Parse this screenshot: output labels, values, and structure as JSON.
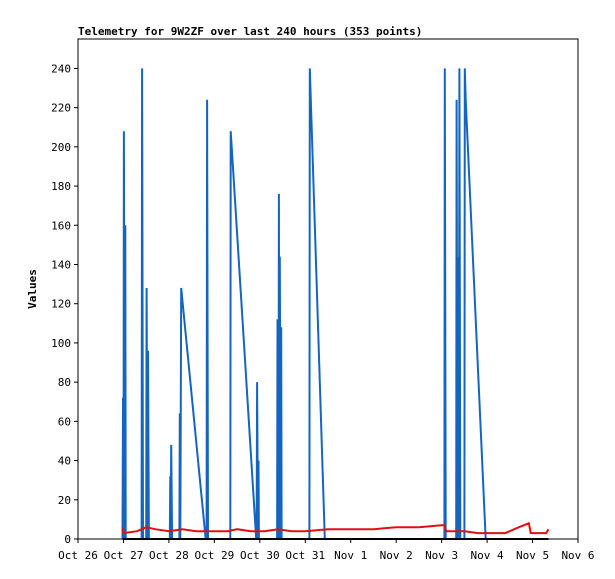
{
  "chart_data": {
    "type": "line",
    "title": "Telemetry for 9W2ZF over last 240 hours (353 points)",
    "xlabel": "",
    "ylabel": "Values",
    "ylim": [
      0,
      255
    ],
    "xlim": [
      0,
      11
    ],
    "yticks": [
      0,
      20,
      40,
      60,
      80,
      100,
      120,
      140,
      160,
      180,
      200,
      220,
      240
    ],
    "x_tick_labels": [
      "Oct 26",
      "Oct 27",
      "Oct 28",
      "Oct 29",
      "Oct 30",
      "Oct 31",
      "Nov 1",
      "Nov 2",
      "Nov 3",
      "Nov 4",
      "Nov 5",
      "Nov 6"
    ],
    "x_unit": "days since Oct 26",
    "grid": false,
    "colors": {
      "series_blue": "#1565c0",
      "series_red": "#e01010",
      "series_black": "#000000"
    },
    "series": [
      {
        "key": "blue",
        "points": [
          [
            0.98,
            0
          ],
          [
            0.99,
            72
          ],
          [
            1.0,
            0
          ],
          [
            1.01,
            208
          ],
          [
            1.03,
            0
          ],
          [
            1.04,
            160
          ],
          [
            1.05,
            0
          ],
          [
            1.4,
            0
          ],
          [
            1.41,
            240
          ],
          [
            1.43,
            0
          ],
          [
            1.5,
            0
          ],
          [
            1.51,
            128
          ],
          [
            1.53,
            0
          ],
          [
            1.54,
            96
          ],
          [
            1.56,
            0
          ],
          [
            2.02,
            0
          ],
          [
            2.03,
            32
          ],
          [
            2.04,
            0
          ],
          [
            2.05,
            48
          ],
          [
            2.07,
            0
          ],
          [
            2.23,
            0
          ],
          [
            2.24,
            64
          ],
          [
            2.25,
            0
          ],
          [
            2.27,
            128
          ],
          [
            2.81,
            0
          ],
          [
            2.83,
            0
          ],
          [
            2.84,
            224
          ],
          [
            2.86,
            0
          ],
          [
            3.35,
            0
          ],
          [
            3.36,
            208
          ],
          [
            3.92,
            0
          ],
          [
            3.93,
            0
          ],
          [
            3.94,
            80
          ],
          [
            3.96,
            0
          ],
          [
            3.97,
            40
          ],
          [
            3.98,
            0
          ],
          [
            4.38,
            0
          ],
          [
            4.39,
            112
          ],
          [
            4.41,
            0
          ],
          [
            4.42,
            176
          ],
          [
            4.43,
            0
          ],
          [
            4.44,
            144
          ],
          [
            4.46,
            0
          ],
          [
            4.47,
            108
          ],
          [
            4.48,
            0
          ],
          [
            5.09,
            0
          ],
          [
            5.1,
            240
          ],
          [
            5.43,
            0
          ],
          [
            8.06,
            0
          ],
          [
            8.07,
            240
          ],
          [
            8.09,
            0
          ],
          [
            8.32,
            0
          ],
          [
            8.33,
            224
          ],
          [
            8.35,
            0
          ],
          [
            8.36,
            144
          ],
          [
            8.38,
            0
          ],
          [
            8.39,
            240
          ],
          [
            8.41,
            0
          ],
          [
            8.5,
            0
          ],
          [
            8.51,
            240
          ],
          [
            8.53,
            224
          ],
          [
            8.97,
            0
          ]
        ]
      },
      {
        "key": "red",
        "points": [
          [
            0.98,
            6
          ],
          [
            1.0,
            3
          ],
          [
            1.3,
            4
          ],
          [
            1.5,
            6
          ],
          [
            1.7,
            5
          ],
          [
            2.0,
            4
          ],
          [
            2.3,
            5
          ],
          [
            2.6,
            4
          ],
          [
            3.0,
            4
          ],
          [
            3.3,
            4
          ],
          [
            3.5,
            5
          ],
          [
            3.8,
            4
          ],
          [
            4.1,
            4
          ],
          [
            4.4,
            5
          ],
          [
            4.7,
            4
          ],
          [
            5.0,
            4
          ],
          [
            5.5,
            5
          ],
          [
            6.0,
            5
          ],
          [
            6.5,
            5
          ],
          [
            7.0,
            6
          ],
          [
            7.5,
            6
          ],
          [
            8.0,
            7
          ],
          [
            8.06,
            7
          ],
          [
            8.1,
            4
          ],
          [
            8.5,
            4
          ],
          [
            8.8,
            3
          ],
          [
            9.2,
            3
          ],
          [
            9.4,
            3
          ],
          [
            9.7,
            6
          ],
          [
            9.92,
            8
          ],
          [
            9.96,
            3
          ],
          [
            10.3,
            3
          ],
          [
            10.35,
            5
          ]
        ]
      },
      {
        "key": "black",
        "points": [
          [
            0.98,
            0
          ],
          [
            10.35,
            0
          ]
        ]
      }
    ]
  }
}
